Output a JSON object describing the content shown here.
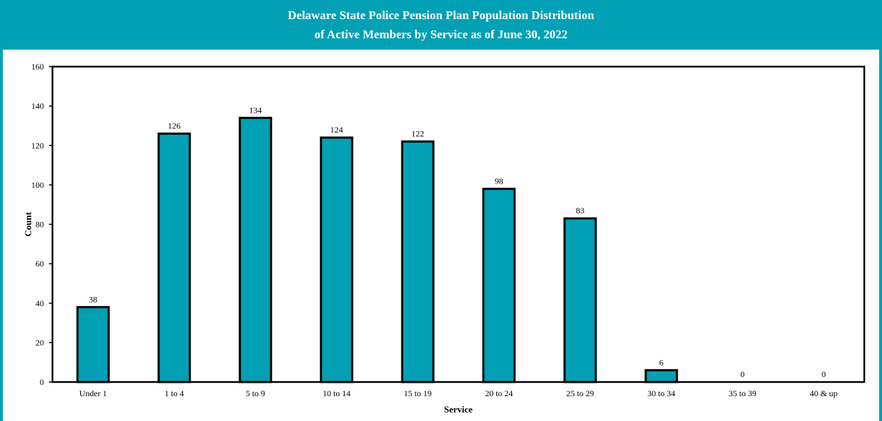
{
  "colors": {
    "accent": "#02a0b4",
    "bar_fill": "#02a0b4",
    "bar_stroke": "#000000",
    "title_text": "#ffffff"
  },
  "chart_data": {
    "type": "bar",
    "title_line1": "Delaware State Police Pension Plan Population Distribution",
    "title_line2": "of Active Members by Service as of June 30, 2022",
    "xlabel": "Service",
    "ylabel": "Count",
    "categories": [
      "Under 1",
      "1 to 4",
      "5 to 9",
      "10 to 14",
      "15 to 19",
      "20 to 24",
      "25 to 29",
      "30 to 34",
      "35 to 39",
      "40 & up"
    ],
    "values": [
      38,
      126,
      134,
      124,
      122,
      98,
      83,
      6,
      0,
      0
    ],
    "ylim": [
      0,
      160
    ],
    "yticks": [
      0,
      20,
      40,
      60,
      80,
      100,
      120,
      140,
      160
    ],
    "grid": false,
    "data_labels": true
  }
}
